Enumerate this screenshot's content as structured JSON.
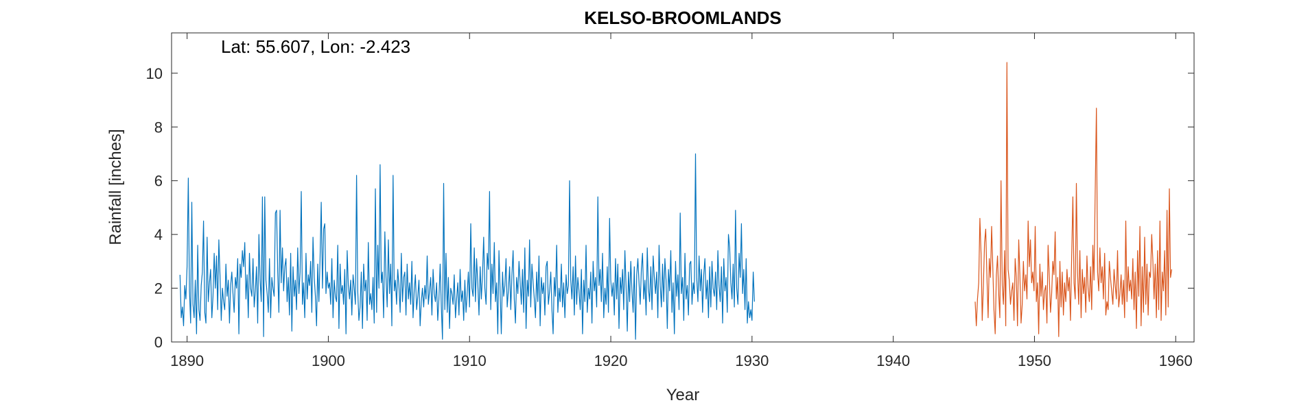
{
  "chart_data": {
    "type": "line",
    "title": "KELSO-BROOMLANDS",
    "annotation": "Lat: 55.607, Lon: -2.423",
    "xlabel": "Year",
    "ylabel": "Rainfall [inches]",
    "xlim": [
      1888.9,
      1961.3
    ],
    "ylim": [
      0,
      11.5
    ],
    "xticks": [
      1890,
      1900,
      1910,
      1920,
      1930,
      1940,
      1950,
      1960
    ],
    "yticks": [
      0,
      2,
      4,
      6,
      8,
      10
    ],
    "grid": false,
    "legend": "none",
    "series": [
      {
        "color": "#0072BD",
        "x_start": 1889.5,
        "x_step": 0.0833333,
        "values": [
          2.5,
          0.9,
          1.3,
          0.6,
          2.1,
          1.6,
          2.8,
          6.1,
          1.9,
          0.7,
          5.2,
          1.4,
          0.9,
          2.3,
          0.3,
          3.6,
          1.2,
          0.8,
          2.1,
          2.6,
          4.5,
          1.1,
          0.7,
          3.9,
          1.5,
          2.2,
          2.7,
          0.9,
          1.7,
          3.3,
          2.0,
          3.2,
          1.2,
          3.8,
          2.4,
          0.8,
          2.0,
          1.5,
          1.2,
          2.9,
          1.7,
          2.3,
          0.7,
          2.1,
          2.6,
          1.8,
          1.1,
          2.4,
          2.0,
          3.1,
          0.3,
          2.9,
          2.4,
          3.4,
          2.8,
          3.7,
          1.6,
          2.5,
          0.9,
          3.3,
          2.0,
          1.7,
          3.1,
          1.3,
          1.9,
          2.8,
          0.7,
          4.0,
          2.3,
          1.5,
          5.4,
          0.2,
          5.4,
          2.3,
          1.8,
          1.1,
          3.1,
          0.9,
          2.4,
          2.0,
          1.7,
          4.8,
          4.9,
          2.6,
          1.1,
          4.9,
          2.2,
          3.5,
          1.9,
          2.8,
          3.1,
          1.5,
          2.4,
          1.0,
          3.3,
          0.4,
          2.8,
          1.7,
          2.3,
          1.2,
          3.5,
          1.8,
          2.6,
          5.6,
          1.4,
          2.2,
          0.9,
          3.3,
          1.6,
          2.5,
          2.1,
          3.0,
          1.1,
          3.9,
          2.4,
          1.7,
          0.6,
          2.9,
          1.5,
          3.1,
          5.2,
          2.0,
          4.2,
          4.4,
          1.8,
          2.6,
          2.0,
          2.2,
          1.4,
          3.1,
          0.9,
          2.3,
          1.7,
          1.5,
          3.6,
          0.5,
          2.9,
          1.8,
          2.1,
          1.4,
          2.7,
          0.3,
          3.4,
          2.1,
          1.6,
          2.3,
          1.0,
          2.5,
          2.0,
          1.4,
          6.2,
          1.9,
          0.8,
          1.3,
          2.6,
          0.5,
          2.9,
          1.9,
          2.3,
          0.8,
          3.7,
          1.4,
          1.8,
          1.2,
          2.4,
          0.7,
          5.7,
          1.1,
          3.6,
          2.0,
          6.6,
          2.2,
          2.6,
          0.9,
          4.1,
          2.4,
          1.3,
          3.8,
          1.8,
          2.9,
          0.6,
          6.2,
          1.9,
          2.3,
          1.4,
          2.7,
          2.1,
          1.1,
          3.3,
          1.5,
          2.4,
          2.6,
          1.0,
          2.9,
          1.6,
          2.2,
          1.4,
          3.0,
          0.9,
          1.9,
          2.5,
          1.2,
          1.7,
          2.3,
          0.6,
          1.5,
          2.0,
          1.3,
          2.1,
          1.6,
          3.2,
          1.4,
          1.9,
          2.4,
          1.0,
          2.7,
          1.8,
          1.5,
          2.2,
          0.8,
          1.6,
          2.9,
          1.3,
          0.1,
          5.9,
          1.2,
          3.3,
          1.1,
          2.4,
          0.5,
          2.0,
          1.8,
          1.4,
          2.5,
          0.9,
          1.6,
          2.2,
          1.0,
          2.7,
          1.5,
          1.9,
          0.8,
          2.3,
          1.1,
          1.8,
          2.6,
          1.3,
          4.4,
          2.0,
          1.7,
          3.5,
          1.5,
          3.1,
          2.2,
          1.0,
          2.8,
          1.6,
          2.5,
          3.9,
          2.0,
          1.4,
          3.3,
          2.7,
          5.6,
          1.2,
          2.9,
          1.8,
          3.7,
          1.5,
          2.2,
          0.3,
          3.4,
          1.9,
          0.3,
          2.6,
          1.7,
          2.1,
          3.1,
          1.3,
          1.9,
          2.8,
          1.2,
          2.5,
          3.4,
          1.6,
          0.7,
          2.4,
          1.8,
          3.0,
          2.2,
          1.4,
          2.7,
          1.1,
          3.5,
          0.5,
          2.3,
          1.7,
          3.8,
          1.3,
          2.9,
          2.2,
          1.6,
          0.9,
          2.6,
          1.5,
          3.2,
          0.6,
          2.4,
          1.8,
          2.2,
          1.0,
          2.8,
          3.0,
          1.4,
          1.9,
          2.6,
          1.2,
          0.3,
          2.4,
          1.7,
          3.6,
          1.1,
          2.0,
          1.5,
          2.9,
          1.3,
          2.2,
          0.9,
          2.5,
          1.8,
          2.1,
          6.0,
          2.3,
          1.6,
          2.8,
          1.0,
          3.2,
          1.4,
          2.4,
          1.9,
          1.2,
          2.7,
          0.3,
          2.3,
          1.5,
          3.6,
          1.1,
          2.0,
          1.6,
          2.6,
          0.7,
          3.0,
          1.9,
          2.4,
          1.3,
          5.4,
          2.1,
          2.7,
          1.5,
          3.3,
          0.9,
          2.0,
          1.4,
          2.8,
          1.1,
          4.6,
          2.3,
          1.7,
          2.2,
          1.0,
          3.1,
          1.6,
          2.9,
          0.5,
          2.4,
          1.8,
          2.7,
          1.2,
          3.4,
          2.1,
          0.4,
          2.6,
          1.5,
          3.0,
          1.9,
          1.1,
          2.8,
          0.1,
          2.5,
          3.1,
          2.2,
          1.4,
          2.7,
          3.3,
          1.6,
          2.3,
          1.0,
          3.5,
          2.0,
          1.5,
          2.8,
          1.2,
          3.2,
          2.4,
          1.8,
          2.6,
          0.9,
          3.6,
          2.1,
          1.3,
          2.9,
          1.5,
          3.1,
          2.3,
          0.5,
          2.7,
          1.9,
          3.4,
          1.1,
          2.2,
          0.3,
          3.0,
          1.7,
          2.5,
          1.2,
          4.8,
          1.8,
          2.4,
          0.8,
          3.3,
          1.6,
          2.1,
          1.0,
          2.9,
          3.0,
          1.4,
          2.2,
          1.8,
          7.0,
          2.4,
          1.5,
          3.2,
          1.9,
          2.7,
          1.1,
          2.5,
          3.1,
          1.6,
          2.3,
          0.9,
          2.8,
          1.3,
          3.0,
          2.0,
          1.7,
          2.6,
          1.2,
          3.4,
          2.1,
          1.5,
          2.8,
          0.7,
          3.1,
          1.9,
          2.4,
          1.1,
          4.0,
          3.5,
          2.2,
          1.6,
          2.9,
          1.3,
          4.9,
          2.0,
          1.4,
          3.3,
          2.4,
          4.4,
          1.8,
          2.7,
          1.2,
          3.1,
          0.7,
          1.5,
          0.9,
          1.2,
          0.8,
          2.6,
          1.5
        ]
      },
      {
        "color": "#D95319",
        "x_start": 1945.8,
        "x_step": 0.0833333,
        "values": [
          1.5,
          0.6,
          1.6,
          2.2,
          4.6,
          3.3,
          0.8,
          2.1,
          3.7,
          4.2,
          2.4,
          0.9,
          3.1,
          2.4,
          4.3,
          2.8,
          1.2,
          0.3,
          2.5,
          3.2,
          1.8,
          0.9,
          6.0,
          2.1,
          1.4,
          3.4,
          0.6,
          10.4,
          2.7,
          2.3,
          1.4,
          1.9,
          2.2,
          0.8,
          3.1,
          2.4,
          0.6,
          3.8,
          2.5,
          0.7,
          1.4,
          3.0,
          1.9,
          2.5,
          1.6,
          4.5,
          2.8,
          3.8,
          2.2,
          2.6,
          1.9,
          4.3,
          1.5,
          2.2,
          0.3,
          2.9,
          1.7,
          2.6,
          1.2,
          1.9,
          2.1,
          0.7,
          3.6,
          2.4,
          1.1,
          1.8,
          3.0,
          2.5,
          4.1,
          1.6,
          2.4,
          0.2,
          3.0,
          1.3,
          2.6,
          1.0,
          2.2,
          1.5,
          2.7,
          1.9,
          2.4,
          0.8,
          3.1,
          5.4,
          2.2,
          1.6,
          5.9,
          2.6,
          1.4,
          3.4,
          0.9,
          2.7,
          1.8,
          2.4,
          1.1,
          3.2,
          2.0,
          1.5,
          2.8,
          1.2,
          3.6,
          2.3,
          5.5,
          8.7,
          2.6,
          1.9,
          3.5,
          2.2,
          2.8,
          1.6,
          3.3,
          1.0,
          1.5,
          1.2,
          3.0,
          2.4,
          1.9,
          1.4,
          2.7,
          2.1,
          1.6,
          3.4,
          1.3,
          1.8,
          2.5,
          1.4,
          2.3,
          0.9,
          4.5,
          1.5,
          2.8,
          1.9,
          2.3,
          1.6,
          3.1,
          1.2,
          2.6,
          0.5,
          3.4,
          1.7,
          4.3,
          0.6,
          2.8,
          1.1,
          3.9,
          1.4,
          2.9,
          1.0,
          2.6,
          2.4,
          4.0,
          3.0,
          1.6,
          2.9,
          0.9,
          3.4,
          1.2,
          4.5,
          0.8,
          2.6,
          1.9,
          3.4,
          1.0,
          4.9,
          1.3,
          5.7,
          2.4,
          2.7
        ]
      }
    ]
  }
}
